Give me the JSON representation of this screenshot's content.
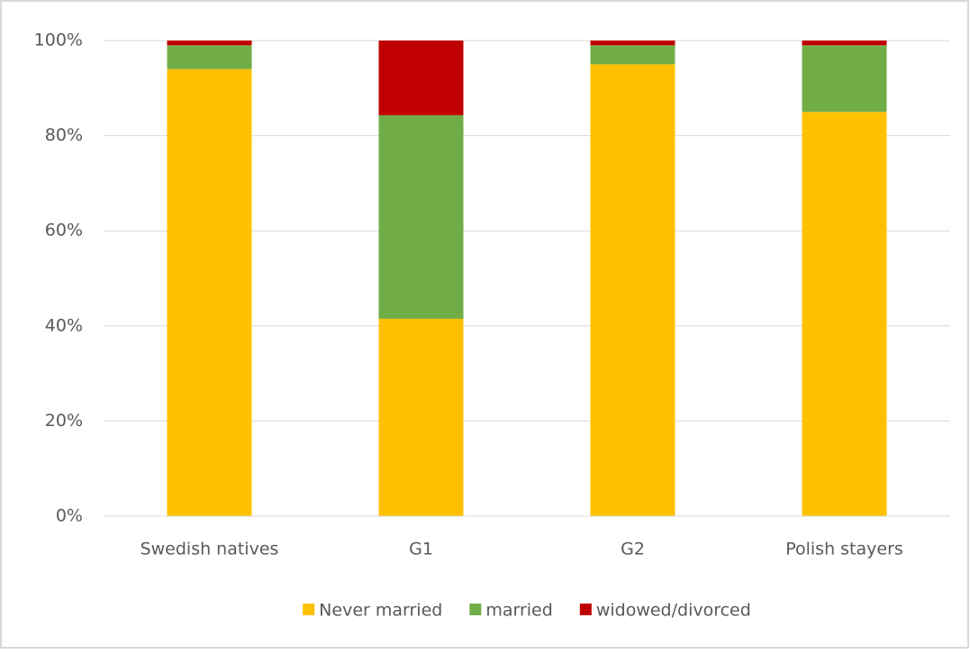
{
  "chart_data": {
    "type": "stacked_bar",
    "categories": [
      "Swedish natives",
      "G1",
      "G2",
      "Polish stayers"
    ],
    "series": [
      {
        "name": "Never married",
        "color": "#ffc000",
        "values": [
          94,
          41.5,
          95,
          85
        ]
      },
      {
        "name": "married",
        "color": "#70ad47",
        "values": [
          5,
          42.8,
          4,
          14
        ]
      },
      {
        "name": "widowed/divorced",
        "color": "#c00000",
        "values": [
          1,
          15.7,
          1,
          1
        ]
      }
    ],
    "ylim": [
      0,
      100
    ],
    "yticks": [
      {
        "value": 0,
        "label": "0%"
      },
      {
        "value": 20,
        "label": "20%"
      },
      {
        "value": 40,
        "label": "40%"
      },
      {
        "value": 60,
        "label": "60%"
      },
      {
        "value": 80,
        "label": "80%"
      },
      {
        "value": 100,
        "label": "100%"
      }
    ],
    "grid": true,
    "legend": "bottom"
  }
}
